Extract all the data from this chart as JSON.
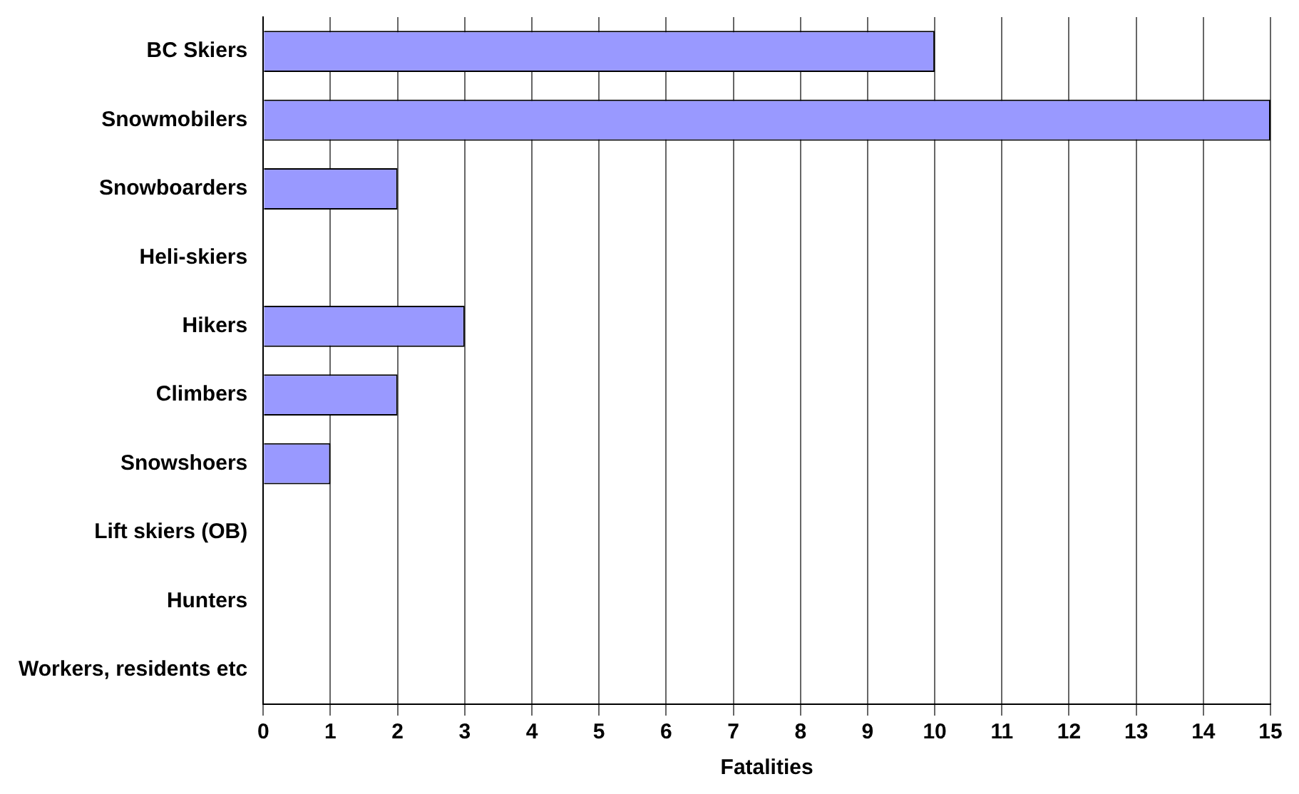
{
  "chart_data": {
    "type": "bar",
    "orientation": "horizontal",
    "xlabel": "Fatalities",
    "categories": [
      "BC Skiers",
      "Snowmobilers",
      "Snowboarders",
      "Heli-skiers",
      "Hikers",
      "Climbers",
      "Snowshoers",
      "Lift skiers (OB)",
      "Hunters",
      "Workers, residents etc"
    ],
    "values": [
      10,
      15,
      2,
      0,
      3,
      2,
      1,
      0,
      0,
      0
    ],
    "color": "#9999ff",
    "xlim": [
      0,
      15
    ],
    "xticks": [
      0,
      1,
      2,
      3,
      4,
      5,
      6,
      7,
      8,
      9,
      10,
      11,
      12,
      13,
      14,
      15
    ],
    "grid": "x",
    "legend": false
  }
}
